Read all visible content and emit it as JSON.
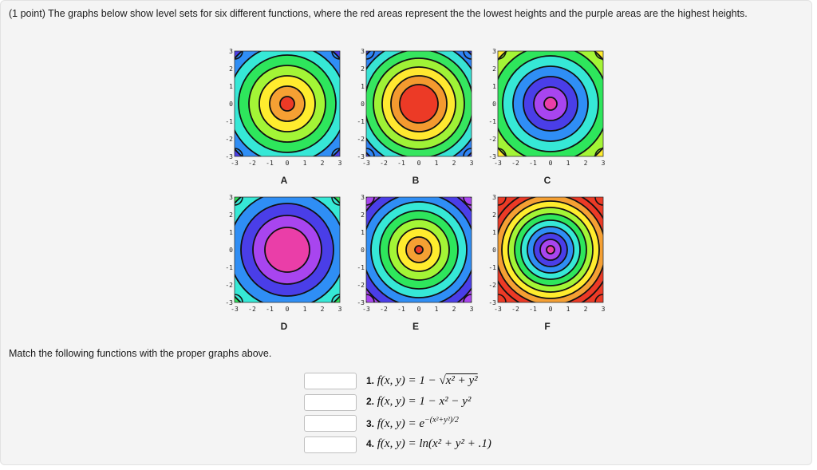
{
  "problem": {
    "intro": "(1 point) The graphs below show level sets for six different functions, where the red areas represent the the lowest heights and the purple areas are the highest heights.",
    "match_prompt": "Match the following functions with the proper graphs above."
  },
  "axis_ticks": [
    "-3",
    "-2",
    "-1",
    "0",
    "1",
    "2",
    "3"
  ],
  "graphs": [
    {
      "label": "A",
      "center": "red-orange",
      "levels": [
        "#ec3a26",
        "#f5a033",
        "#ffec2e",
        "#a3f536",
        "#2ee65c",
        "#36e8d6",
        "#2f8ef5",
        "#4a3ee8",
        "#a845ef"
      ]
    },
    {
      "label": "B",
      "center": "red",
      "levels": [
        "#ec3a26",
        "#f39a2f",
        "#ffe830",
        "#9ff236",
        "#36e65f",
        "#38e3d4",
        "#2e84f5",
        "#3a3ee8"
      ]
    },
    {
      "label": "C",
      "center": "magenta",
      "levels": [
        "#ea3ea8",
        "#a845ef",
        "#4a3ee8",
        "#2f8ef5",
        "#36e8d6",
        "#2ee65c",
        "#a3f536",
        "#ffec2e",
        "#f5a033"
      ]
    },
    {
      "label": "D",
      "center": "magenta",
      "levels": [
        "#ea3ea8",
        "#a845ef",
        "#4a3ee8",
        "#2f8ef5",
        "#36e8d6",
        "#2ee65c",
        "#a3f536",
        "#ffec2e",
        "#f5a033"
      ]
    },
    {
      "label": "E",
      "center": "red",
      "levels": [
        "#ec3a26",
        "#f5a033",
        "#ffec2e",
        "#a3f536",
        "#2ee65c",
        "#36e8d6",
        "#2f8ef5",
        "#4a3ee8",
        "#a845ef",
        "#d246e8"
      ]
    },
    {
      "label": "F",
      "center": "magenta",
      "levels": [
        "#ea3ea8",
        "#a845ef",
        "#4a3ee8",
        "#2f8ef5",
        "#36e8d6",
        "#2ee65c",
        "#a3f536",
        "#ffec2e",
        "#f5a033",
        "#ec3a26"
      ]
    }
  ],
  "functions": [
    {
      "num": "1.",
      "lhs": "f(x, y) = 1 − ",
      "rhs": "x² + y²",
      "kind": "sqrt"
    },
    {
      "num": "2.",
      "lhs": "f(x, y) = 1 − x² − y²",
      "kind": "plain"
    },
    {
      "num": "3.",
      "lhs": "f(x, y) = e",
      "exp": "−(x²+y²)/2",
      "kind": "exp"
    },
    {
      "num": "4.",
      "lhs": "f(x, y) = ln(x² + y² + .1)",
      "kind": "plain"
    }
  ],
  "answers": [
    "",
    "",
    "",
    ""
  ]
}
